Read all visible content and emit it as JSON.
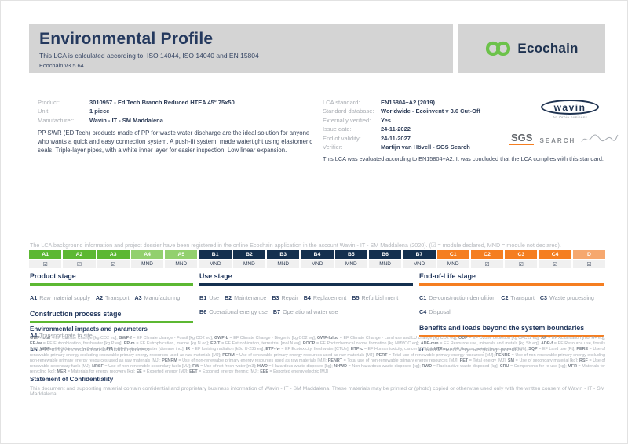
{
  "header": {
    "title": "Environmental Profile",
    "subtitle": "This LCA is calculated according to: ISO 14044, ISO 14040 and EN 15804",
    "version": "Ecochain v3.5.64",
    "logo_text": "Ecochain"
  },
  "product_info": {
    "rows": [
      {
        "label": "Product:",
        "value": "3010957 - Ed Tech Branch Reduced HTEA 45° 75x50"
      },
      {
        "label": "Unit:",
        "value": "1 piece"
      },
      {
        "label": "Manufacturer:",
        "value": "Wavin - IT - SM Maddalena"
      }
    ],
    "description": "PP SWR (ED Tech) products made of PP for waste water discharge are the ideal solution for anyone who wants a quick and easy connection system. A push-fit system, made watertight using elastomeric seals. Triple-layer pipes, with a white inner layer for easier inspection. Low linear expansion."
  },
  "lca_info": {
    "rows": [
      {
        "label": "LCA standard:",
        "value": "EN15804+A2 (2019)"
      },
      {
        "label": "Standard database:",
        "value": "Worldwide - Ecoinvent v 3.6 Cut-Off"
      },
      {
        "label": "Externally verified:",
        "value": "Yes"
      },
      {
        "label": "Issue date:",
        "value": "24-11-2022"
      },
      {
        "label": "End of validity:",
        "value": "24-11-2027"
      },
      {
        "label": "Verifier:",
        "value": "Martijn van Hövell - SGS Search"
      }
    ],
    "evaluation_note": "This LCA was evaluated according to EN15804+A2. It was concluded that the LCA complies with this standard."
  },
  "logos": {
    "wavin": "wavin",
    "wavin_sub": "An Orbia business",
    "sgs": "SGS",
    "search": "SEARCH"
  },
  "registration_note": "The LCA background information and project dossier have been registered in the online Ecochain application in the account Wavin - IT - SM Maddalena (2020). (☑ = module declared, MND = module not declared).",
  "module_table": {
    "cells": [
      {
        "code": "A1",
        "status": "☑",
        "group": "green"
      },
      {
        "code": "A2",
        "status": "☑",
        "group": "green"
      },
      {
        "code": "A3",
        "status": "☑",
        "group": "green"
      },
      {
        "code": "A4",
        "status": "MND",
        "group": "light_green"
      },
      {
        "code": "A5",
        "status": "MND",
        "group": "light_green"
      },
      {
        "code": "B1",
        "status": "MND",
        "group": "navy"
      },
      {
        "code": "B2",
        "status": "MND",
        "group": "navy"
      },
      {
        "code": "B3",
        "status": "MND",
        "group": "navy"
      },
      {
        "code": "B4",
        "status": "MND",
        "group": "navy"
      },
      {
        "code": "B5",
        "status": "MND",
        "group": "navy"
      },
      {
        "code": "B6",
        "status": "MND",
        "group": "navy"
      },
      {
        "code": "B7",
        "status": "MND",
        "group": "navy"
      },
      {
        "code": "C1",
        "status": "MND",
        "group": "orange"
      },
      {
        "code": "C2",
        "status": "☑",
        "group": "orange"
      },
      {
        "code": "C3",
        "status": "☑",
        "group": "orange"
      },
      {
        "code": "C4",
        "status": "☑",
        "group": "orange"
      },
      {
        "code": "D",
        "status": "☑",
        "group": "light_orange"
      }
    ]
  },
  "stage_columns": [
    {
      "sections": [
        {
          "heading": "Product stage",
          "accent": "green",
          "items": [
            {
              "code": "A1",
              "label": "Raw material supply"
            },
            {
              "code": "A2",
              "label": "Transport"
            },
            {
              "code": "A3",
              "label": "Manufacturing"
            }
          ]
        },
        {
          "heading": "Construction process stage",
          "accent": "green",
          "items": [
            {
              "code": "A4",
              "label": "Transport gate to site"
            },
            {
              "code": "A5",
              "label": "Assembly / Construction installation process"
            }
          ]
        }
      ]
    },
    {
      "sections": [
        {
          "heading": "Use stage",
          "accent": "navy",
          "items": [
            {
              "code": "B1",
              "label": "Use"
            },
            {
              "code": "B2",
              "label": "Maintenance"
            },
            {
              "code": "B3",
              "label": "Repair"
            },
            {
              "code": "B4",
              "label": "Replacement"
            },
            {
              "code": "B5",
              "label": "Refurbishment"
            },
            {
              "code": "B6",
              "label": "Operational energy use"
            },
            {
              "code": "B7",
              "label": "Operational water use"
            }
          ]
        }
      ]
    },
    {
      "sections": [
        {
          "heading": "End-of-Life stage",
          "accent": "orange",
          "items": [
            {
              "code": "C1",
              "label": "De-construction demolition"
            },
            {
              "code": "C2",
              "label": "Transport"
            },
            {
              "code": "C3",
              "label": "Waste processing"
            },
            {
              "code": "C4",
              "label": "Disposal"
            }
          ]
        },
        {
          "heading": "Benefits and loads beyond the system boundaries",
          "accent": "orange",
          "items": [
            {
              "code": "D",
              "label": "Reuse- Recovery- Recycling- potential"
            }
          ]
        }
      ]
    }
  ],
  "impacts": {
    "heading": "Environmental impacts and parameters",
    "params": [
      {
        "k": "GWP-total",
        "v": "EF Climate Change [kg CO2 eq]"
      },
      {
        "k": "GWP-f",
        "v": "EF Climate change - Fossil [kg CO2 eq]"
      },
      {
        "k": "GWP-b",
        "v": "EF Climate Change - Biogenic [kg CO2 eq]"
      },
      {
        "k": "GWP-luluc",
        "v": "EF Climate Change - Land use and LU change [kg CO2 eq]"
      },
      {
        "k": "ODP",
        "v": "EF Ozone depletion [kg CFC11 eq]"
      },
      {
        "k": "AP",
        "v": "EF Acidification [mol H+ eq]"
      },
      {
        "k": "EP-fw",
        "v": "EF Eutrophication, freshwater [kg P eq]"
      },
      {
        "k": "EP-m",
        "v": "EF Eutrophication, marine [kg N eq]"
      },
      {
        "k": "EP-T",
        "v": "EF Eutrophication, terrestrial [mol N eq]"
      },
      {
        "k": "POCP",
        "v": "EF Photochemical ozone formation [kg NMVOC eq]"
      },
      {
        "k": "ADP-mm",
        "v": "EF Resource use, minerals and metals [kg Sb eq]"
      },
      {
        "k": "ADP-f",
        "v": "EF Resource use, fossils [MJ]"
      },
      {
        "k": "WDP",
        "v": "EF Water use [m3 depriv.]"
      },
      {
        "k": "PM",
        "v": "EF Particulate matter [disease inc.]"
      },
      {
        "k": "IR",
        "v": "EF Ionising radiation [kBq U-235 eq]"
      },
      {
        "k": "ETP-fw",
        "v": "EF Ecotoxicity, freshwater [CTUe]"
      },
      {
        "k": "HTP-c",
        "v": "EF Human toxicity, cancer [CTUh]"
      },
      {
        "k": "HTP-nc",
        "v": "EF Human toxicity, non-cancer [CTUh]"
      },
      {
        "k": "SQP",
        "v": "EF Land use [Pt]"
      },
      {
        "k": "PERE",
        "v": "Use of renewable primary energy excluding renewable primary energy resources used as raw materials [MJ]"
      },
      {
        "k": "PERM",
        "v": "Use of renewable primary energy resources used as raw materials [MJ]"
      },
      {
        "k": "PERT",
        "v": "Total use of renewable primary energy resources [MJ]"
      },
      {
        "k": "PENRE",
        "v": "Use of non renewable primary energy excluding non-renewable primary energy resources used as raw materials [MJ]"
      },
      {
        "k": "PENRM",
        "v": "Use of non-renewable primary energy resources used as raw materials [MJ]"
      },
      {
        "k": "PENRT",
        "v": "Total use of non-renewable primary energy resources [MJ]"
      },
      {
        "k": "PET",
        "v": "Total energy [MJ]"
      },
      {
        "k": "SM",
        "v": "Use of secondary material [kg]"
      },
      {
        "k": "RSF",
        "v": "Use of renewable secondary fuels [MJ]"
      },
      {
        "k": "NRSF",
        "v": "Use of non-renewable secondary fuels [MJ]"
      },
      {
        "k": "FW",
        "v": "Use of net fresh water [m3]"
      },
      {
        "k": "HWD",
        "v": "Hazardous waste disposed [kg]"
      },
      {
        "k": "NHWD",
        "v": "Non-hazardous waste disposed [kg]"
      },
      {
        "k": "RWD",
        "v": "Radioactive waste disposed [kg]"
      },
      {
        "k": "CRU",
        "v": "Components for re-use [kg]"
      },
      {
        "k": "MFR",
        "v": "Materials for recycling [kg]"
      },
      {
        "k": "MER",
        "v": "Materials for energy recovery [kg]"
      },
      {
        "k": "EE",
        "v": "Exported energy [MJ]"
      },
      {
        "k": "EET",
        "v": "Exported energy thermic [MJ]"
      },
      {
        "k": "EEE",
        "v": "Exported energy electric [MJ]"
      }
    ]
  },
  "confidentiality": {
    "heading": "Statement of Confidentiality",
    "text": "This document and supporting material contain confidential and proprietary business information of Wavin - IT - SM Maddalena. These materials may be printed or (photo) copied or otherwise used only with the written consent of Wavin - IT - SM Maddalena."
  },
  "colors": {
    "green": "#5cb832",
    "light_green": "#92d06e",
    "navy": "#14304f",
    "orange": "#f57e20",
    "light_orange": "#f6a86f",
    "brand_navy": "#1e3250",
    "logo_green": "#6cc24a",
    "header_gray": "#d4d4d4"
  }
}
